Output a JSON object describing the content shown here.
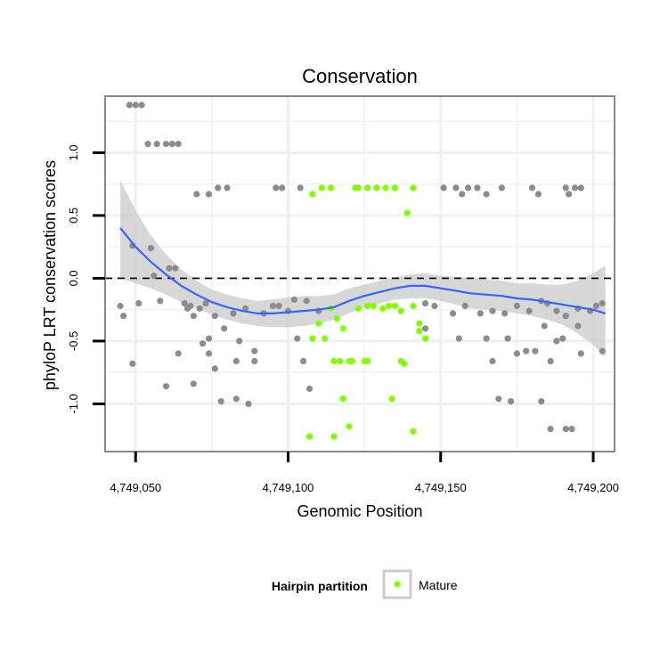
{
  "chart_data": {
    "type": "scatter",
    "title": "Conservation",
    "xlabel": "Genomic Position",
    "ylabel": "phyloP LRT conservation scores",
    "xlim": [
      4749040,
      4749207
    ],
    "ylim": [
      -1.38,
      1.45
    ],
    "x_ticks": [
      4749050,
      4749100,
      4749150,
      4749200
    ],
    "x_tick_labels": [
      "4,749,050",
      "4,749,100",
      "4,749,150",
      "4,749,200"
    ],
    "y_ticks": [
      -1.0,
      -0.5,
      0.0,
      0.5,
      1.0
    ],
    "y_tick_labels": [
      "-1.0",
      "-0.5",
      "0.0",
      "0.5",
      "1.0"
    ],
    "reference_line": {
      "y": 0,
      "style": "dashed",
      "color": "#000000"
    },
    "colors": {
      "other": "#8c8c8c",
      "mature": "#7fff00",
      "smooth": "#3366ff",
      "ribbon": "#d0d0d0",
      "grid": "#f0f0f0",
      "panel_border": "#888888"
    },
    "legend": {
      "title": "Hairpin partition",
      "entries": [
        {
          "label": "Mature",
          "color": "#7fff00"
        }
      ],
      "position": "bottom"
    },
    "series": [
      {
        "name": "Other",
        "x": [
          4749048,
          4749050,
          4749052,
          4749054,
          4749057,
          4749060,
          4749062,
          4749064,
          4749070,
          4749074,
          4749077,
          4749080,
          4749096,
          4749098,
          4749104,
          4749126,
          4749151,
          4749155,
          4749157,
          4749159,
          4749162,
          4749165,
          4749170,
          4749180,
          4749182,
          4749191,
          4749192,
          4749194,
          4749196,
          4749058,
          4749045,
          4749046,
          4749049,
          4749051,
          4749055,
          4749061,
          4749063,
          4749066,
          4749067,
          4749068,
          4749069,
          4749071,
          4749073,
          4749076,
          4749082,
          4749086,
          4749092,
          4749095,
          4749097,
          4749100,
          4749102,
          4749106,
          4749110,
          4749145,
          4749148,
          4749154,
          4749158,
          4749163,
          4749167,
          4749171,
          4749175,
          4749179,
          4749183,
          4749185,
          4749188,
          4749191,
          4749195,
          4749199,
          4749201,
          4749203,
          4749072,
          4749074,
          4749079,
          4749084,
          4749089,
          4749103,
          4749145,
          4749156,
          4749165,
          4749172,
          4749178,
          4749181,
          4749184,
          4749188,
          4749190,
          4749195,
          4749203,
          4749064,
          4749074,
          4749076,
          4749083,
          4749089,
          4749105,
          4749167,
          4749175,
          4749186,
          4749196,
          4749069,
          4749078,
          4749083,
          4749087,
          4749107,
          4749169,
          4749173,
          4749183,
          4749186,
          4749191,
          4749193,
          4749049,
          4749056,
          4749060
        ],
        "y": [
          1.38,
          1.38,
          1.38,
          1.07,
          1.07,
          1.07,
          1.07,
          1.07,
          0.67,
          0.67,
          0.72,
          0.72,
          0.72,
          0.72,
          0.72,
          0.72,
          0.72,
          0.72,
          0.67,
          0.72,
          0.72,
          0.67,
          0.72,
          0.72,
          0.67,
          0.72,
          0.67,
          0.72,
          0.72,
          -0.18,
          -0.22,
          -0.3,
          0.26,
          -0.2,
          0.24,
          0.08,
          0.08,
          -0.2,
          -0.24,
          -0.22,
          -0.3,
          -0.24,
          -0.2,
          -0.3,
          -0.28,
          -0.24,
          -0.28,
          -0.22,
          -0.22,
          -0.26,
          -0.17,
          -0.18,
          -0.26,
          -0.2,
          -0.22,
          -0.28,
          -0.22,
          -0.28,
          -0.26,
          -0.28,
          -0.22,
          -0.26,
          -0.18,
          -0.2,
          -0.26,
          -0.3,
          -0.24,
          -0.26,
          -0.22,
          -0.2,
          -0.52,
          -0.48,
          -0.4,
          -0.5,
          -0.58,
          -0.48,
          -0.4,
          -0.48,
          -0.48,
          -0.48,
          -0.58,
          -0.58,
          -0.38,
          -0.5,
          -0.48,
          -0.38,
          -0.58,
          -0.6,
          -0.6,
          -0.72,
          -0.66,
          -0.66,
          -0.66,
          -0.66,
          -0.6,
          -0.66,
          -0.6,
          -0.84,
          -0.98,
          -0.96,
          -1.0,
          -0.88,
          -0.96,
          -0.98,
          -0.98,
          -1.2,
          -1.2,
          -1.2,
          -0.68,
          0.02,
          -0.86
        ],
        "color": "#8c8c8c"
      },
      {
        "name": "Mature",
        "x": [
          4749108,
          4749111,
          4749114,
          4749122,
          4749123,
          4749126,
          4749129,
          4749132,
          4749135,
          4749141,
          4749139,
          4749108,
          4749110,
          4749112,
          4749114,
          4749116,
          4749118,
          4749123,
          4749126,
          4749128,
          4749131,
          4749133,
          4749135,
          4749137,
          4749141,
          4749143,
          4749145,
          4749117,
          4749120,
          4749125,
          4749137,
          4749143,
          4749115,
          4749121,
          4749126,
          4749138,
          4749118,
          4749134,
          4749120,
          4749107,
          4749115,
          4749141
        ],
        "y": [
          0.67,
          0.72,
          0.72,
          0.72,
          0.72,
          0.72,
          0.72,
          0.72,
          0.72,
          0.72,
          0.52,
          -0.48,
          -0.36,
          -0.48,
          -0.24,
          -0.32,
          -0.4,
          -0.24,
          -0.22,
          -0.22,
          -0.24,
          -0.22,
          -0.22,
          -0.26,
          -0.22,
          -0.36,
          -0.48,
          -0.66,
          -0.66,
          -0.66,
          -0.66,
          -0.42,
          -0.66,
          -0.66,
          -0.66,
          -0.68,
          -0.96,
          -0.96,
          -1.18,
          -1.26,
          -1.26,
          -1.22
        ],
        "color": "#7fff00"
      }
    ],
    "smooth": {
      "name": "loess fit",
      "x": [
        4749045,
        4749050,
        4749055,
        4749060,
        4749065,
        4749070,
        4749075,
        4749080,
        4749085,
        4749090,
        4749095,
        4749100,
        4749105,
        4749110,
        4749115,
        4749120,
        4749125,
        4749130,
        4749135,
        4749140,
        4749145,
        4749150,
        4749155,
        4749160,
        4749165,
        4749170,
        4749175,
        4749180,
        4749185,
        4749190,
        4749195,
        4749200,
        4749204
      ],
      "y": [
        0.4,
        0.25,
        0.13,
        0.03,
        -0.06,
        -0.13,
        -0.19,
        -0.23,
        -0.26,
        -0.28,
        -0.28,
        -0.27,
        -0.26,
        -0.25,
        -0.23,
        -0.18,
        -0.14,
        -0.11,
        -0.08,
        -0.06,
        -0.06,
        -0.08,
        -0.1,
        -0.12,
        -0.13,
        -0.14,
        -0.16,
        -0.17,
        -0.19,
        -0.21,
        -0.23,
        -0.25,
        -0.28
      ],
      "lower": [
        0.0,
        -0.04,
        -0.08,
        -0.13,
        -0.19,
        -0.24,
        -0.29,
        -0.33,
        -0.36,
        -0.38,
        -0.39,
        -0.39,
        -0.38,
        -0.36,
        -0.33,
        -0.28,
        -0.23,
        -0.2,
        -0.17,
        -0.16,
        -0.16,
        -0.18,
        -0.21,
        -0.24,
        -0.25,
        -0.26,
        -0.28,
        -0.3,
        -0.33,
        -0.37,
        -0.44,
        -0.53,
        -0.63
      ],
      "upper": [
        0.78,
        0.54,
        0.34,
        0.19,
        0.07,
        -0.02,
        -0.09,
        -0.13,
        -0.16,
        -0.18,
        -0.17,
        -0.15,
        -0.14,
        -0.14,
        -0.13,
        -0.08,
        -0.05,
        -0.02,
        0.01,
        0.03,
        0.04,
        0.02,
        0.01,
        0.0,
        -0.01,
        -0.02,
        -0.04,
        -0.04,
        -0.05,
        -0.05,
        -0.02,
        0.04,
        0.1
      ],
      "color": "#3366ff"
    }
  }
}
